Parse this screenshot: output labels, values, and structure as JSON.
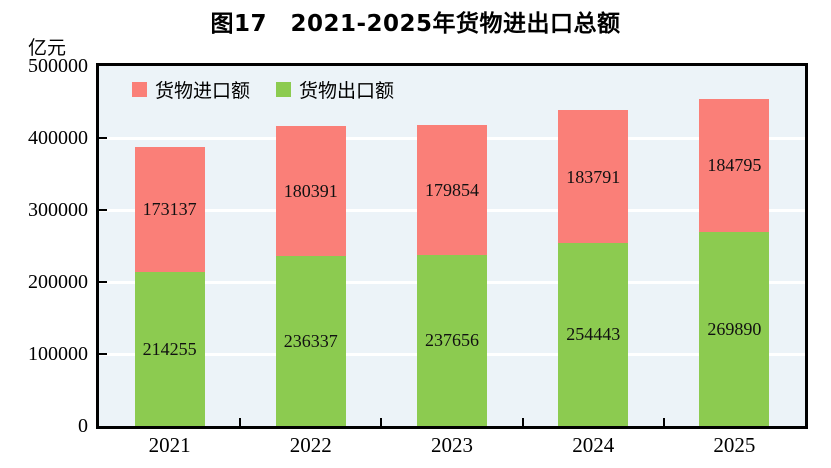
{
  "title": "图17　2021-2025年货物进出口总额",
  "unit_label": "亿元",
  "colors": {
    "import_bar": "#FA7F78",
    "export_bar": "#8CCB50",
    "plot_background": "#ECF3F8",
    "gridline": "#FFFFFF",
    "axis": "#000000",
    "label_text": "#111111"
  },
  "legend": {
    "items": [
      {
        "label": "货物进口额",
        "color": "#FA7F78"
      },
      {
        "label": "货物出口额",
        "color": "#8CCB50"
      }
    ]
  },
  "chart_data": {
    "type": "bar",
    "stacked": true,
    "title": "图17　2021-2025年货物进出口总额",
    "ylabel": "亿元",
    "xlabel": "",
    "categories": [
      "2021",
      "2022",
      "2023",
      "2024",
      "2025"
    ],
    "series": [
      {
        "name": "货物进口额",
        "color": "#FA7F78",
        "stack": "top",
        "values": [
          173137,
          180391,
          179854,
          183791,
          184795
        ]
      },
      {
        "name": "货物出口额",
        "color": "#8CCB50",
        "stack": "bottom",
        "values": [
          214255,
          236337,
          237656,
          254443,
          269890
        ]
      }
    ],
    "ylim": [
      0,
      500000
    ],
    "yticks": [
      0,
      100000,
      200000,
      300000,
      400000,
      500000
    ],
    "grid": true,
    "legend_position": "top-left-inside"
  }
}
